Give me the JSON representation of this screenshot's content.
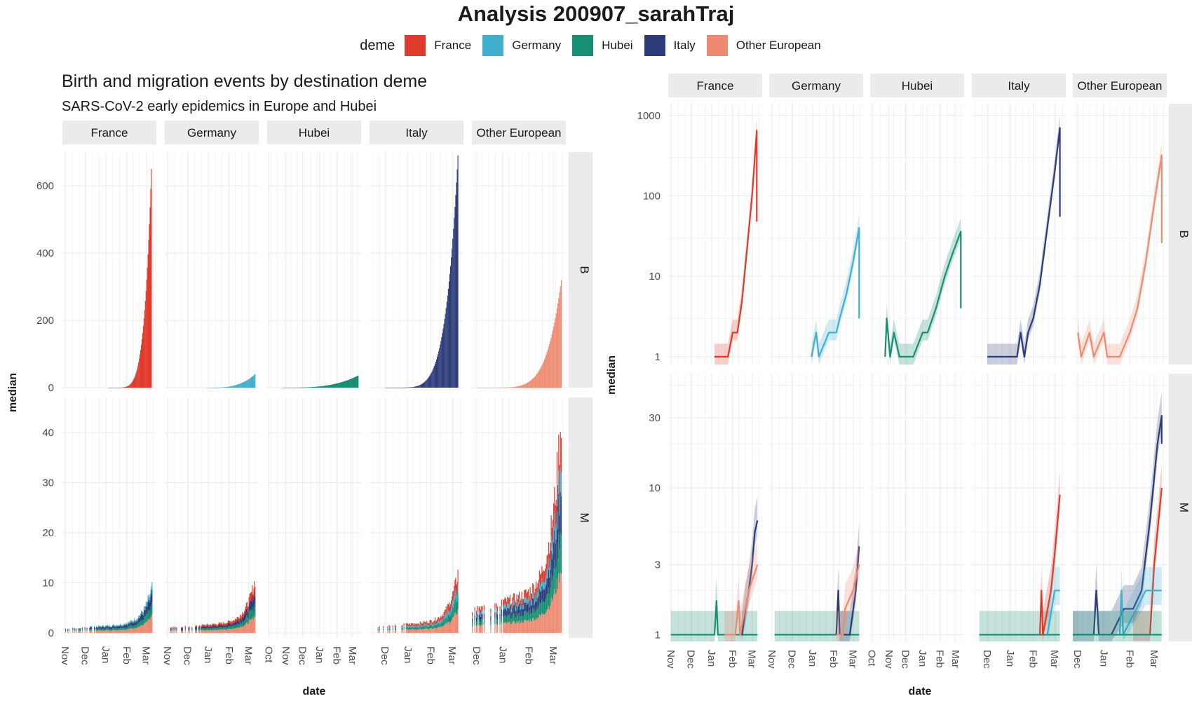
{
  "title": "Analysis  200907_sarahTraj",
  "legend": {
    "title": "deme",
    "items": [
      {
        "label": "France",
        "color": "#E03A2B"
      },
      {
        "label": "Germany",
        "color": "#41AFCF"
      },
      {
        "label": "Hubei",
        "color": "#168F72"
      },
      {
        "label": "Italy",
        "color": "#2C3C78"
      },
      {
        "label": "Other European",
        "color": "#EE8A70"
      }
    ]
  },
  "chart_data": [
    {
      "type": "bar",
      "title": "Birth and migration events by destination deme",
      "subtitle": "SARS-CoV-2 early epidemics in Europe and Hubei",
      "xlabel": "date",
      "ylabel": "median",
      "stacked": true,
      "x_axis": "date",
      "x_ticks": [
        [
          "Nov",
          "Dec",
          "Jan",
          "Feb",
          "Mar"
        ],
        [
          "Nov",
          "Dec",
          "Jan",
          "Feb",
          "Mar"
        ],
        [
          "Oct",
          "Nov",
          "Dec",
          "Jan",
          "Feb",
          "Mar"
        ],
        [
          "Dec",
          "Jan",
          "Feb",
          "Mar"
        ],
        [
          "Dec",
          "Jan",
          "Feb",
          "Mar"
        ]
      ],
      "facet_columns": [
        "France",
        "Germany",
        "Hubei",
        "Italy",
        "Other European"
      ],
      "facet_rows": [
        "B",
        "M"
      ],
      "rows": {
        "B": {
          "ylim": [
            0,
            700
          ],
          "yticks": [
            0,
            200,
            400,
            600
          ],
          "peaks": [
            {
              "deme": "France",
              "start": "2020-01-05",
              "end": "2020-03-08",
              "peak": 650
            },
            {
              "deme": "Germany",
              "start": "2019-12-30",
              "end": "2020-03-10",
              "peak": 40
            },
            {
              "deme": "Hubei",
              "start": "2019-10-25",
              "end": "2020-03-10",
              "peak": 36
            },
            {
              "deme": "Italy",
              "start": "2019-12-01",
              "end": "2020-03-08",
              "peak": 690
            },
            {
              "deme": "Other European",
              "start": "2019-12-01",
              "end": "2020-03-10",
              "peak": 320
            }
          ]
        },
        "M": {
          "ylim": [
            -1,
            47
          ],
          "yticks": [
            0,
            10,
            20,
            30,
            40
          ],
          "peaks": [
            {
              "deme": "France",
              "start": "2019-11-01",
              "end": "2020-03-09",
              "peak": 11
            },
            {
              "deme": "Germany",
              "start": "2019-11-05",
              "end": "2020-03-10",
              "peak": 12
            },
            {
              "deme": "Hubei",
              "start": "2019-10-25",
              "end": "2020-03-10",
              "peak": 0
            },
            {
              "deme": "Italy",
              "start": "2019-11-20",
              "end": "2020-03-08",
              "peak": 15
            },
            {
              "deme": "Other European",
              "start": "2019-11-25",
              "end": "2020-03-10",
              "peak": 44
            }
          ]
        }
      }
    },
    {
      "type": "line",
      "xlabel": "date",
      "ylabel": "median",
      "y_scale": "log",
      "x_axis": "date",
      "x_ticks": [
        [
          "Nov",
          "Dec",
          "Jan",
          "Feb",
          "Mar"
        ],
        [
          "Nov",
          "Dec",
          "Jan",
          "Feb",
          "Mar"
        ],
        [
          "Oct",
          "Nov",
          "Dec",
          "Jan",
          "Feb",
          "Mar"
        ],
        [
          "Dec",
          "Jan",
          "Feb",
          "Mar"
        ],
        [
          "Dec",
          "Jan",
          "Feb",
          "Mar"
        ]
      ],
      "facet_columns": [
        "France",
        "Germany",
        "Hubei",
        "Italy",
        "Other European"
      ],
      "facet_rows": [
        "B",
        "M"
      ],
      "rows": {
        "B": {
          "ylim": [
            0.8,
            1400
          ],
          "yticks": [
            1,
            10,
            100,
            1000
          ],
          "series": [
            {
              "facet": "France",
              "name": "France",
              "points": [
                [
                  "2020-01-05",
                  1
                ],
                [
                  "2020-01-25",
                  1
                ],
                [
                  "2020-02-01",
                  2
                ],
                [
                  "2020-02-08",
                  2
                ],
                [
                  "2020-02-15",
                  5
                ],
                [
                  "2020-02-22",
                  20
                ],
                [
                  "2020-03-01",
                  100
                ],
                [
                  "2020-03-08",
                  650
                ],
                [
                  "2020-03-08",
                  48
                ]
              ]
            },
            {
              "facet": "Germany",
              "name": "Germany",
              "points": [
                [
                  "2019-12-30",
                  1
                ],
                [
                  "2020-01-06",
                  2
                ],
                [
                  "2020-01-10",
                  1
                ],
                [
                  "2020-01-25",
                  2
                ],
                [
                  "2020-02-05",
                  2
                ],
                [
                  "2020-02-10",
                  3
                ],
                [
                  "2020-02-20",
                  6
                ],
                [
                  "2020-03-01",
                  15
                ],
                [
                  "2020-03-10",
                  40
                ],
                [
                  "2020-03-10",
                  3
                ]
              ]
            },
            {
              "facet": "Hubei",
              "name": "Hubei",
              "points": [
                [
                  "2019-10-25",
                  1
                ],
                [
                  "2019-10-28",
                  3
                ],
                [
                  "2019-11-03",
                  1
                ],
                [
                  "2019-11-10",
                  2
                ],
                [
                  "2019-11-20",
                  1
                ],
                [
                  "2019-12-15",
                  1
                ],
                [
                  "2020-01-01",
                  2
                ],
                [
                  "2020-01-10",
                  2
                ],
                [
                  "2020-01-25",
                  4
                ],
                [
                  "2020-02-10",
                  10
                ],
                [
                  "2020-02-25",
                  20
                ],
                [
                  "2020-03-10",
                  36
                ],
                [
                  "2020-03-10",
                  4
                ]
              ]
            },
            {
              "facet": "Italy",
              "name": "Italy",
              "points": [
                [
                  "2019-12-01",
                  1
                ],
                [
                  "2020-01-10",
                  1
                ],
                [
                  "2020-01-15",
                  2
                ],
                [
                  "2020-01-20",
                  1
                ],
                [
                  "2020-01-25",
                  2
                ],
                [
                  "2020-02-01",
                  3
                ],
                [
                  "2020-02-10",
                  8
                ],
                [
                  "2020-02-20",
                  40
                ],
                [
                  "2020-03-01",
                  200
                ],
                [
                  "2020-03-08",
                  700
                ],
                [
                  "2020-03-08",
                  55
                ]
              ]
            },
            {
              "facet": "Other European",
              "name": "Other European",
              "points": [
                [
                  "2019-12-01",
                  2
                ],
                [
                  "2019-12-05",
                  1
                ],
                [
                  "2019-12-15",
                  2
                ],
                [
                  "2019-12-20",
                  1
                ],
                [
                  "2020-01-01",
                  2
                ],
                [
                  "2020-01-05",
                  1
                ],
                [
                  "2020-01-20",
                  1
                ],
                [
                  "2020-02-01",
                  2
                ],
                [
                  "2020-02-10",
                  4
                ],
                [
                  "2020-02-20",
                  15
                ],
                [
                  "2020-03-01",
                  80
                ],
                [
                  "2020-03-10",
                  320
                ],
                [
                  "2020-03-10",
                  26
                ]
              ]
            }
          ]
        },
        "M": {
          "ylim": [
            0.9,
            60
          ],
          "yticks": [
            1,
            3,
            10,
            30
          ],
          "series": [
            {
              "facet": "France",
              "name": "Hubei",
              "points": [
                [
                  "2019-11-01",
                  1
                ],
                [
                  "2020-01-05",
                  1
                ],
                [
                  "2020-01-08",
                  1.7
                ],
                [
                  "2020-01-10",
                  1
                ],
                [
                  "2020-03-09",
                  1
                ]
              ]
            },
            {
              "facet": "France",
              "name": "Italy",
              "points": [
                [
                  "2020-02-15",
                  1
                ],
                [
                  "2020-02-20",
                  1.5
                ],
                [
                  "2020-02-25",
                  2
                ],
                [
                  "2020-03-01",
                  3
                ],
                [
                  "2020-03-05",
                  5
                ],
                [
                  "2020-03-09",
                  6
                ]
              ]
            },
            {
              "facet": "France",
              "name": "Other European",
              "points": [
                [
                  "2020-01-20",
                  1
                ],
                [
                  "2020-02-05",
                  1
                ],
                [
                  "2020-02-10",
                  1.7
                ],
                [
                  "2020-02-12",
                  1
                ],
                [
                  "2020-02-25",
                  2
                ],
                [
                  "2020-03-09",
                  3
                ]
              ]
            },
            {
              "facet": "Germany",
              "name": "Hubei",
              "points": [
                [
                  "2019-11-05",
                  1
                ],
                [
                  "2020-03-10",
                  1
                ]
              ]
            },
            {
              "facet": "Germany",
              "name": "Italy",
              "points": [
                [
                  "2020-02-05",
                  1
                ],
                [
                  "2020-02-08",
                  2
                ],
                [
                  "2020-02-10",
                  1
                ],
                [
                  "2020-02-25",
                  1
                ],
                [
                  "2020-03-05",
                  2
                ],
                [
                  "2020-03-10",
                  4
                ]
              ]
            },
            {
              "facet": "Germany",
              "name": "Other European",
              "points": [
                [
                  "2020-02-05",
                  1
                ],
                [
                  "2020-02-15",
                  1
                ],
                [
                  "2020-02-18",
                  1.5
                ],
                [
                  "2020-03-01",
                  2
                ],
                [
                  "2020-03-10",
                  3
                ]
              ]
            },
            {
              "facet": "Italy",
              "name": "Hubei",
              "points": [
                [
                  "2019-11-20",
                  1
                ],
                [
                  "2020-03-08",
                  1
                ]
              ]
            },
            {
              "facet": "Italy",
              "name": "France",
              "points": [
                [
                  "2020-02-10",
                  1
                ],
                [
                  "2020-02-12",
                  2
                ],
                [
                  "2020-02-14",
                  1
                ],
                [
                  "2020-02-25",
                  2
                ],
                [
                  "2020-03-02",
                  4
                ],
                [
                  "2020-03-08",
                  9
                ]
              ]
            },
            {
              "facet": "Italy",
              "name": "Germany",
              "points": [
                [
                  "2020-02-20",
                  1
                ],
                [
                  "2020-03-01",
                  2
                ],
                [
                  "2020-03-08",
                  2
                ]
              ]
            },
            {
              "facet": "Other European",
              "name": "Italy",
              "points": [
                [
                  "2019-11-25",
                  1
                ],
                [
                  "2019-12-20",
                  1
                ],
                [
                  "2019-12-23",
                  2
                ],
                [
                  "2019-12-26",
                  1
                ],
                [
                  "2020-01-10",
                  1
                ],
                [
                  "2020-01-25",
                  1.5
                ],
                [
                  "2020-02-05",
                  1.5
                ],
                [
                  "2020-02-15",
                  2
                ],
                [
                  "2020-02-25",
                  6
                ],
                [
                  "2020-03-05",
                  20
                ],
                [
                  "2020-03-10",
                  31
                ],
                [
                  "2020-03-10",
                  20
                ]
              ]
            },
            {
              "facet": "Other European",
              "name": "France",
              "points": [
                [
                  "2020-02-05",
                  1
                ],
                [
                  "2020-02-25",
                  1
                ],
                [
                  "2020-03-01",
                  3
                ],
                [
                  "2020-03-10",
                  10
                ]
              ]
            },
            {
              "facet": "Other European",
              "name": "Germany",
              "points": [
                [
                  "2020-01-20",
                  1
                ],
                [
                  "2020-01-22",
                  2
                ],
                [
                  "2020-01-24",
                  1
                ],
                [
                  "2020-02-20",
                  2
                ],
                [
                  "2020-03-10",
                  2
                ]
              ]
            },
            {
              "facet": "Other European",
              "name": "Hubei",
              "points": [
                [
                  "2019-11-25",
                  1
                ],
                [
                  "2020-03-10",
                  1
                ]
              ]
            }
          ]
        }
      }
    }
  ]
}
